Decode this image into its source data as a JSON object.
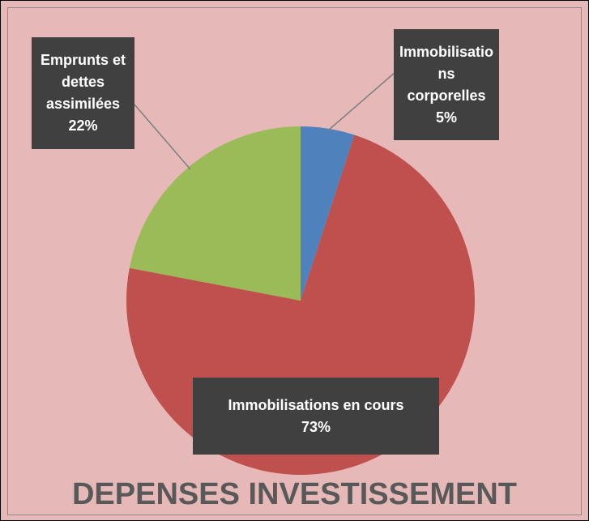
{
  "chart_data": {
    "type": "pie",
    "title": "DEPENSES INVESTISSEMENT",
    "categories": [
      "Immobilisations corporelles",
      "Immobilisations en cours",
      "Emprunts et dettes assimilées"
    ],
    "values": [
      5,
      73,
      22
    ],
    "value_labels": [
      "5%",
      "73%",
      "22%"
    ],
    "colors": [
      "#4f81bd",
      "#c0504d",
      "#9bbb59"
    ]
  }
}
